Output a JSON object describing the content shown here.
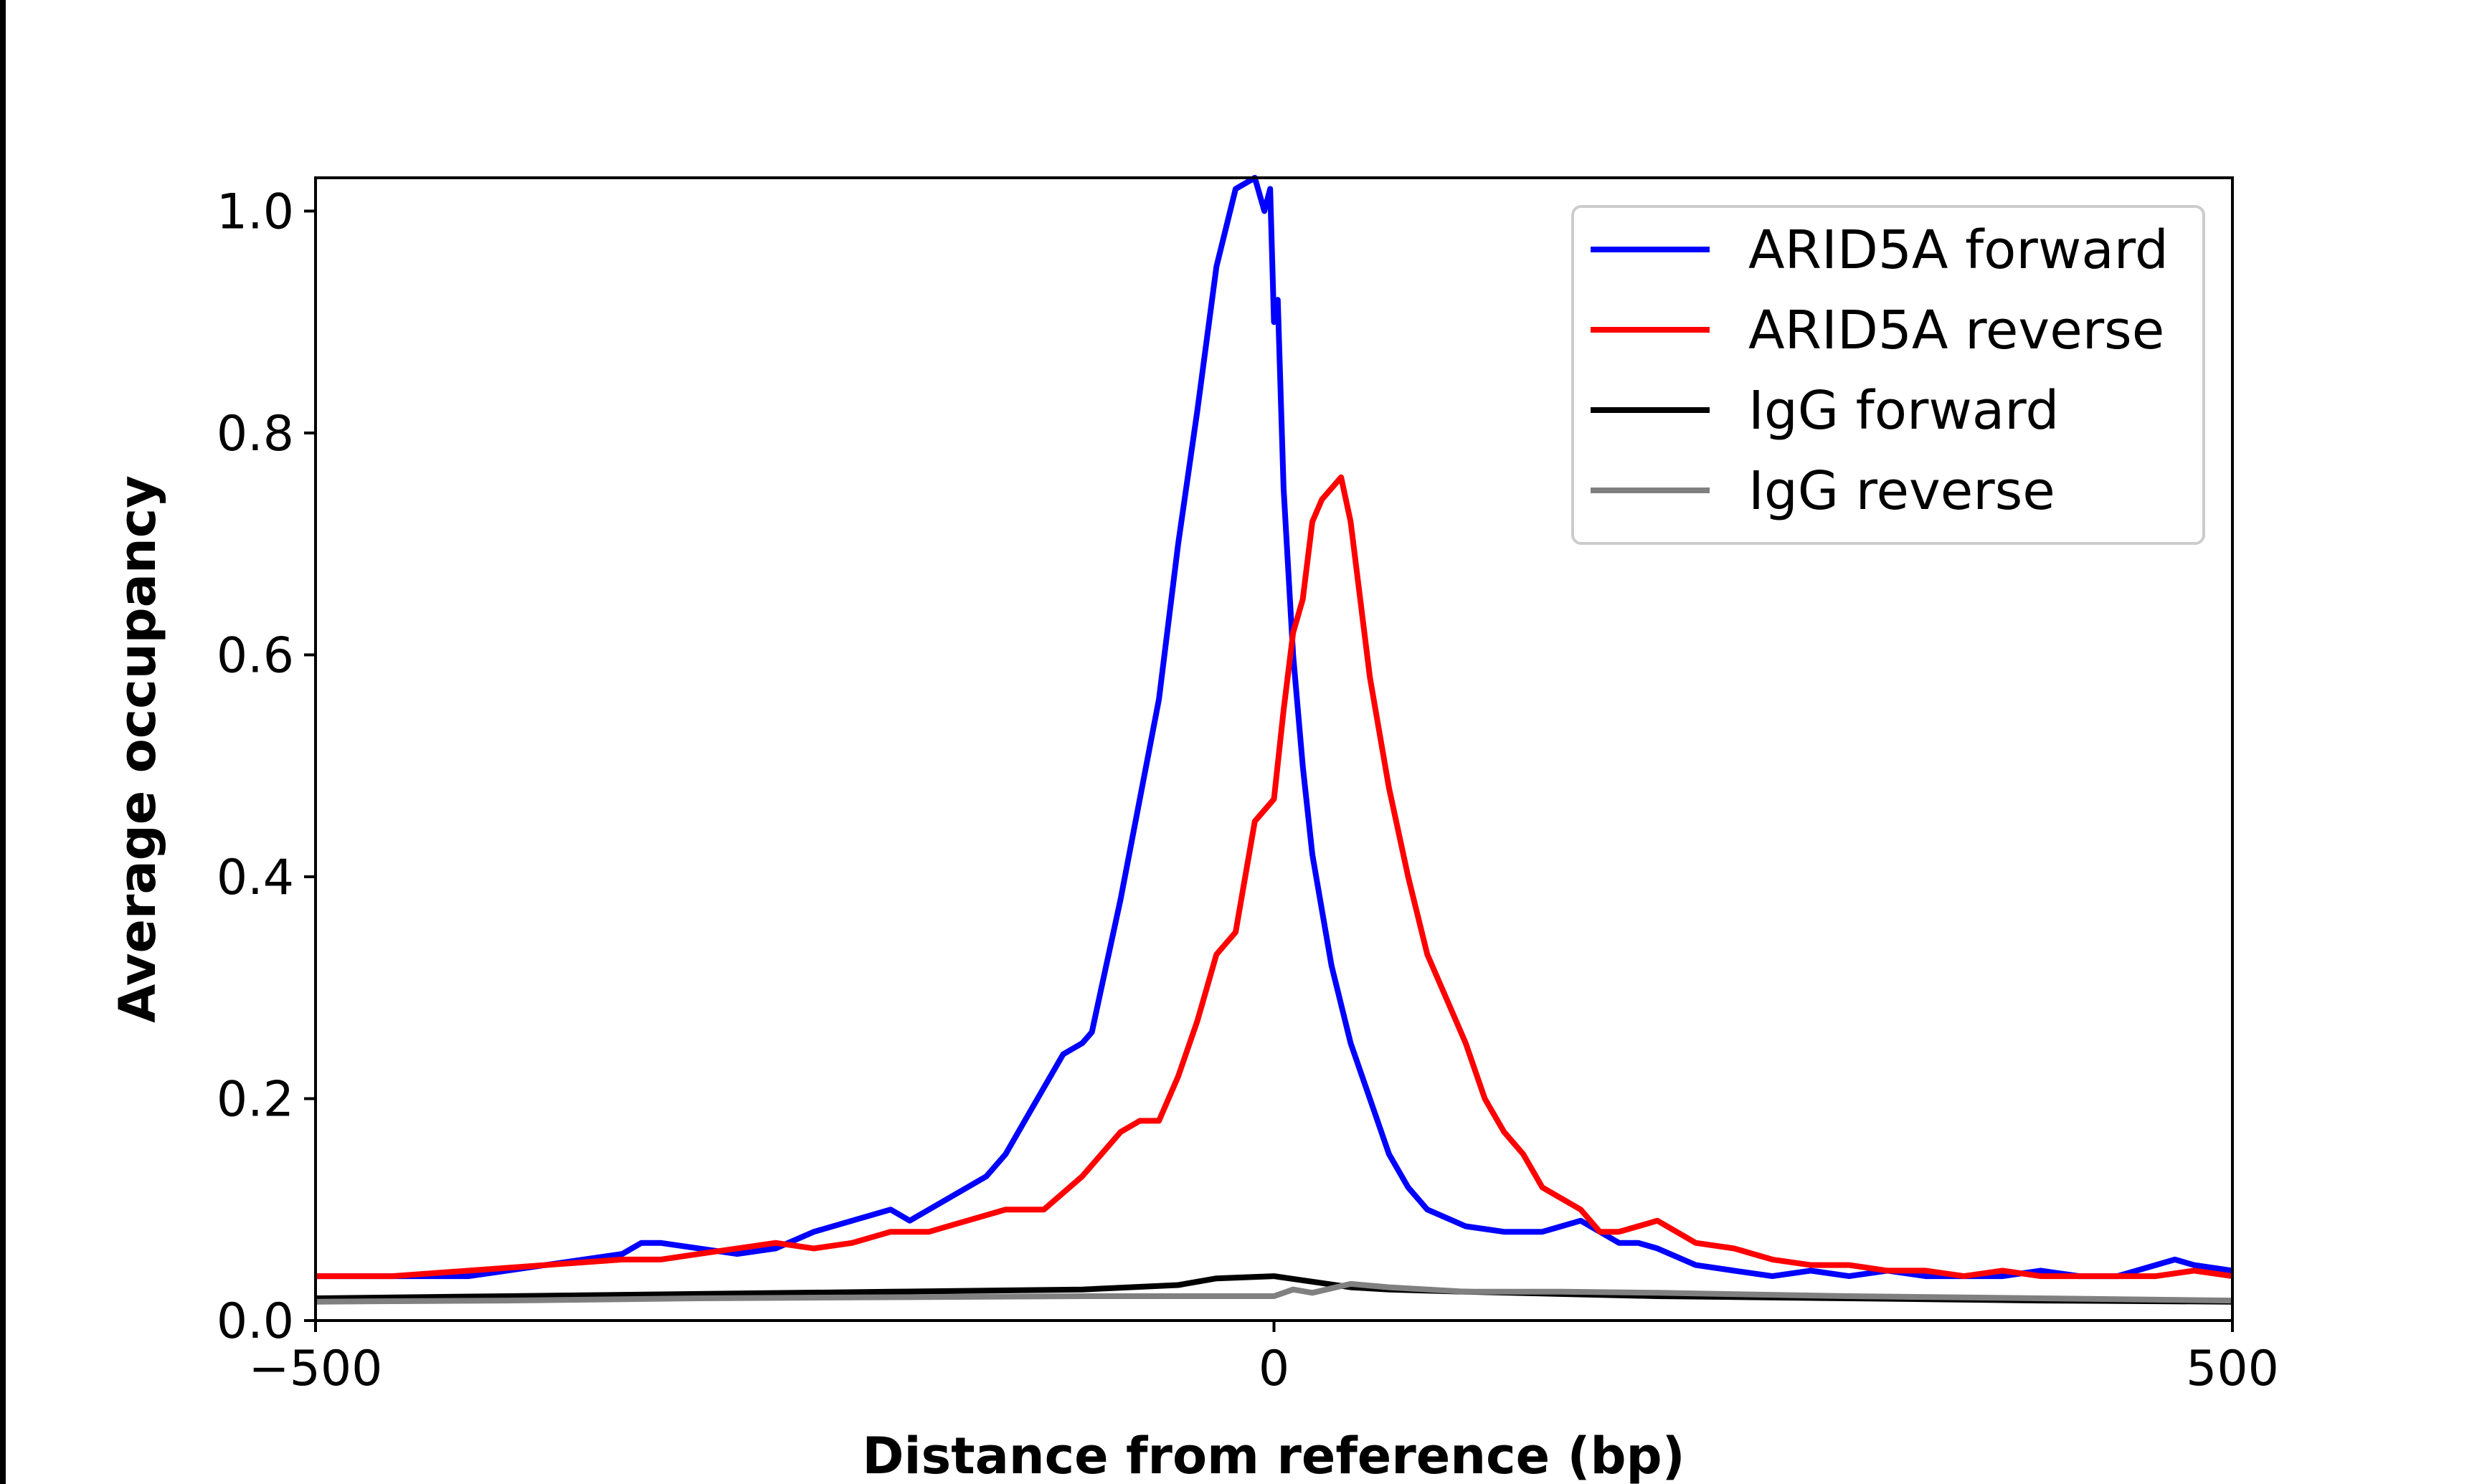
{
  "chart_data": {
    "type": "line",
    "title": "",
    "xlabel": "Distance from reference (bp)",
    "ylabel": "Average occupancy",
    "xlim": [
      -500,
      500
    ],
    "ylim": [
      0,
      1.03
    ],
    "xticks": [
      -500,
      0,
      500
    ],
    "xtick_labels": [
      "−500",
      "0",
      "500"
    ],
    "yticks": [
      0,
      0.2,
      0.4,
      0.6,
      0.8,
      1.0
    ],
    "ytick_labels": [
      "0.0",
      "0.2",
      "0.4",
      "0.6",
      "0.8",
      "1.0"
    ],
    "grid": false,
    "legend_position": "top-right",
    "series": [
      {
        "name": "ARID5A forward",
        "color": "#0000ff",
        "x": [
          -500,
          -460,
          -420,
          -380,
          -340,
          -330,
          -320,
          -300,
          -280,
          -260,
          -240,
          -220,
          -200,
          -190,
          -180,
          -160,
          -150,
          -140,
          -130,
          -110,
          -100,
          -95,
          -90,
          -85,
          -80,
          -70,
          -60,
          -50,
          -40,
          -30,
          -20,
          -10,
          -5,
          -2,
          0,
          2,
          5,
          10,
          15,
          20,
          30,
          40,
          50,
          60,
          70,
          80,
          100,
          120,
          140,
          160,
          180,
          190,
          200,
          220,
          240,
          260,
          280,
          300,
          320,
          340,
          360,
          380,
          400,
          420,
          440,
          460,
          470,
          480,
          500
        ],
        "y": [
          0.04,
          0.04,
          0.04,
          0.05,
          0.06,
          0.07,
          0.07,
          0.065,
          0.06,
          0.065,
          0.08,
          0.09,
          0.1,
          0.09,
          0.1,
          0.12,
          0.13,
          0.15,
          0.18,
          0.24,
          0.25,
          0.26,
          0.3,
          0.34,
          0.38,
          0.47,
          0.56,
          0.7,
          0.82,
          0.95,
          1.02,
          1.03,
          1.0,
          1.02,
          0.9,
          0.92,
          0.75,
          0.6,
          0.5,
          0.42,
          0.32,
          0.25,
          0.2,
          0.15,
          0.12,
          0.1,
          0.085,
          0.08,
          0.08,
          0.09,
          0.07,
          0.07,
          0.065,
          0.05,
          0.045,
          0.04,
          0.045,
          0.04,
          0.045,
          0.04,
          0.04,
          0.04,
          0.045,
          0.04,
          0.04,
          0.05,
          0.055,
          0.05,
          0.045
        ]
      },
      {
        "name": "ARID5A reverse",
        "color": "#ff0000",
        "x": [
          -500,
          -460,
          -420,
          -380,
          -340,
          -320,
          -300,
          -280,
          -260,
          -240,
          -220,
          -200,
          -180,
          -160,
          -140,
          -130,
          -120,
          -100,
          -90,
          -80,
          -70,
          -60,
          -50,
          -40,
          -30,
          -20,
          -10,
          0,
          5,
          10,
          15,
          20,
          25,
          30,
          35,
          40,
          45,
          50,
          60,
          70,
          80,
          90,
          100,
          110,
          120,
          130,
          140,
          160,
          170,
          180,
          190,
          200,
          220,
          240,
          260,
          280,
          300,
          320,
          340,
          360,
          380,
          400,
          420,
          440,
          460,
          480,
          500
        ],
        "y": [
          0.04,
          0.04,
          0.045,
          0.05,
          0.055,
          0.055,
          0.06,
          0.065,
          0.07,
          0.065,
          0.07,
          0.08,
          0.08,
          0.09,
          0.1,
          0.1,
          0.1,
          0.13,
          0.15,
          0.17,
          0.18,
          0.18,
          0.22,
          0.27,
          0.33,
          0.35,
          0.45,
          0.47,
          0.55,
          0.62,
          0.65,
          0.72,
          0.74,
          0.75,
          0.76,
          0.72,
          0.65,
          0.58,
          0.48,
          0.4,
          0.33,
          0.29,
          0.25,
          0.2,
          0.17,
          0.15,
          0.12,
          0.1,
          0.08,
          0.08,
          0.085,
          0.09,
          0.07,
          0.065,
          0.055,
          0.05,
          0.05,
          0.045,
          0.045,
          0.04,
          0.045,
          0.04,
          0.04,
          0.04,
          0.04,
          0.045,
          0.04
        ]
      },
      {
        "name": "IgG forward",
        "color": "#000000",
        "x": [
          -500,
          -400,
          -300,
          -200,
          -100,
          -50,
          -30,
          0,
          20,
          40,
          60,
          100,
          200,
          300,
          400,
          500
        ],
        "y": [
          0.02,
          0.022,
          0.024,
          0.026,
          0.028,
          0.032,
          0.038,
          0.04,
          0.035,
          0.03,
          0.028,
          0.026,
          0.022,
          0.02,
          0.018,
          0.017
        ]
      },
      {
        "name": "IgG reverse",
        "color": "#808080",
        "x": [
          -500,
          -400,
          -300,
          -200,
          -100,
          -50,
          0,
          10,
          20,
          40,
          60,
          100,
          150,
          200,
          300,
          400,
          500
        ],
        "y": [
          0.017,
          0.018,
          0.02,
          0.021,
          0.022,
          0.022,
          0.022,
          0.028,
          0.025,
          0.033,
          0.03,
          0.026,
          0.026,
          0.025,
          0.022,
          0.02,
          0.018
        ]
      }
    ]
  }
}
